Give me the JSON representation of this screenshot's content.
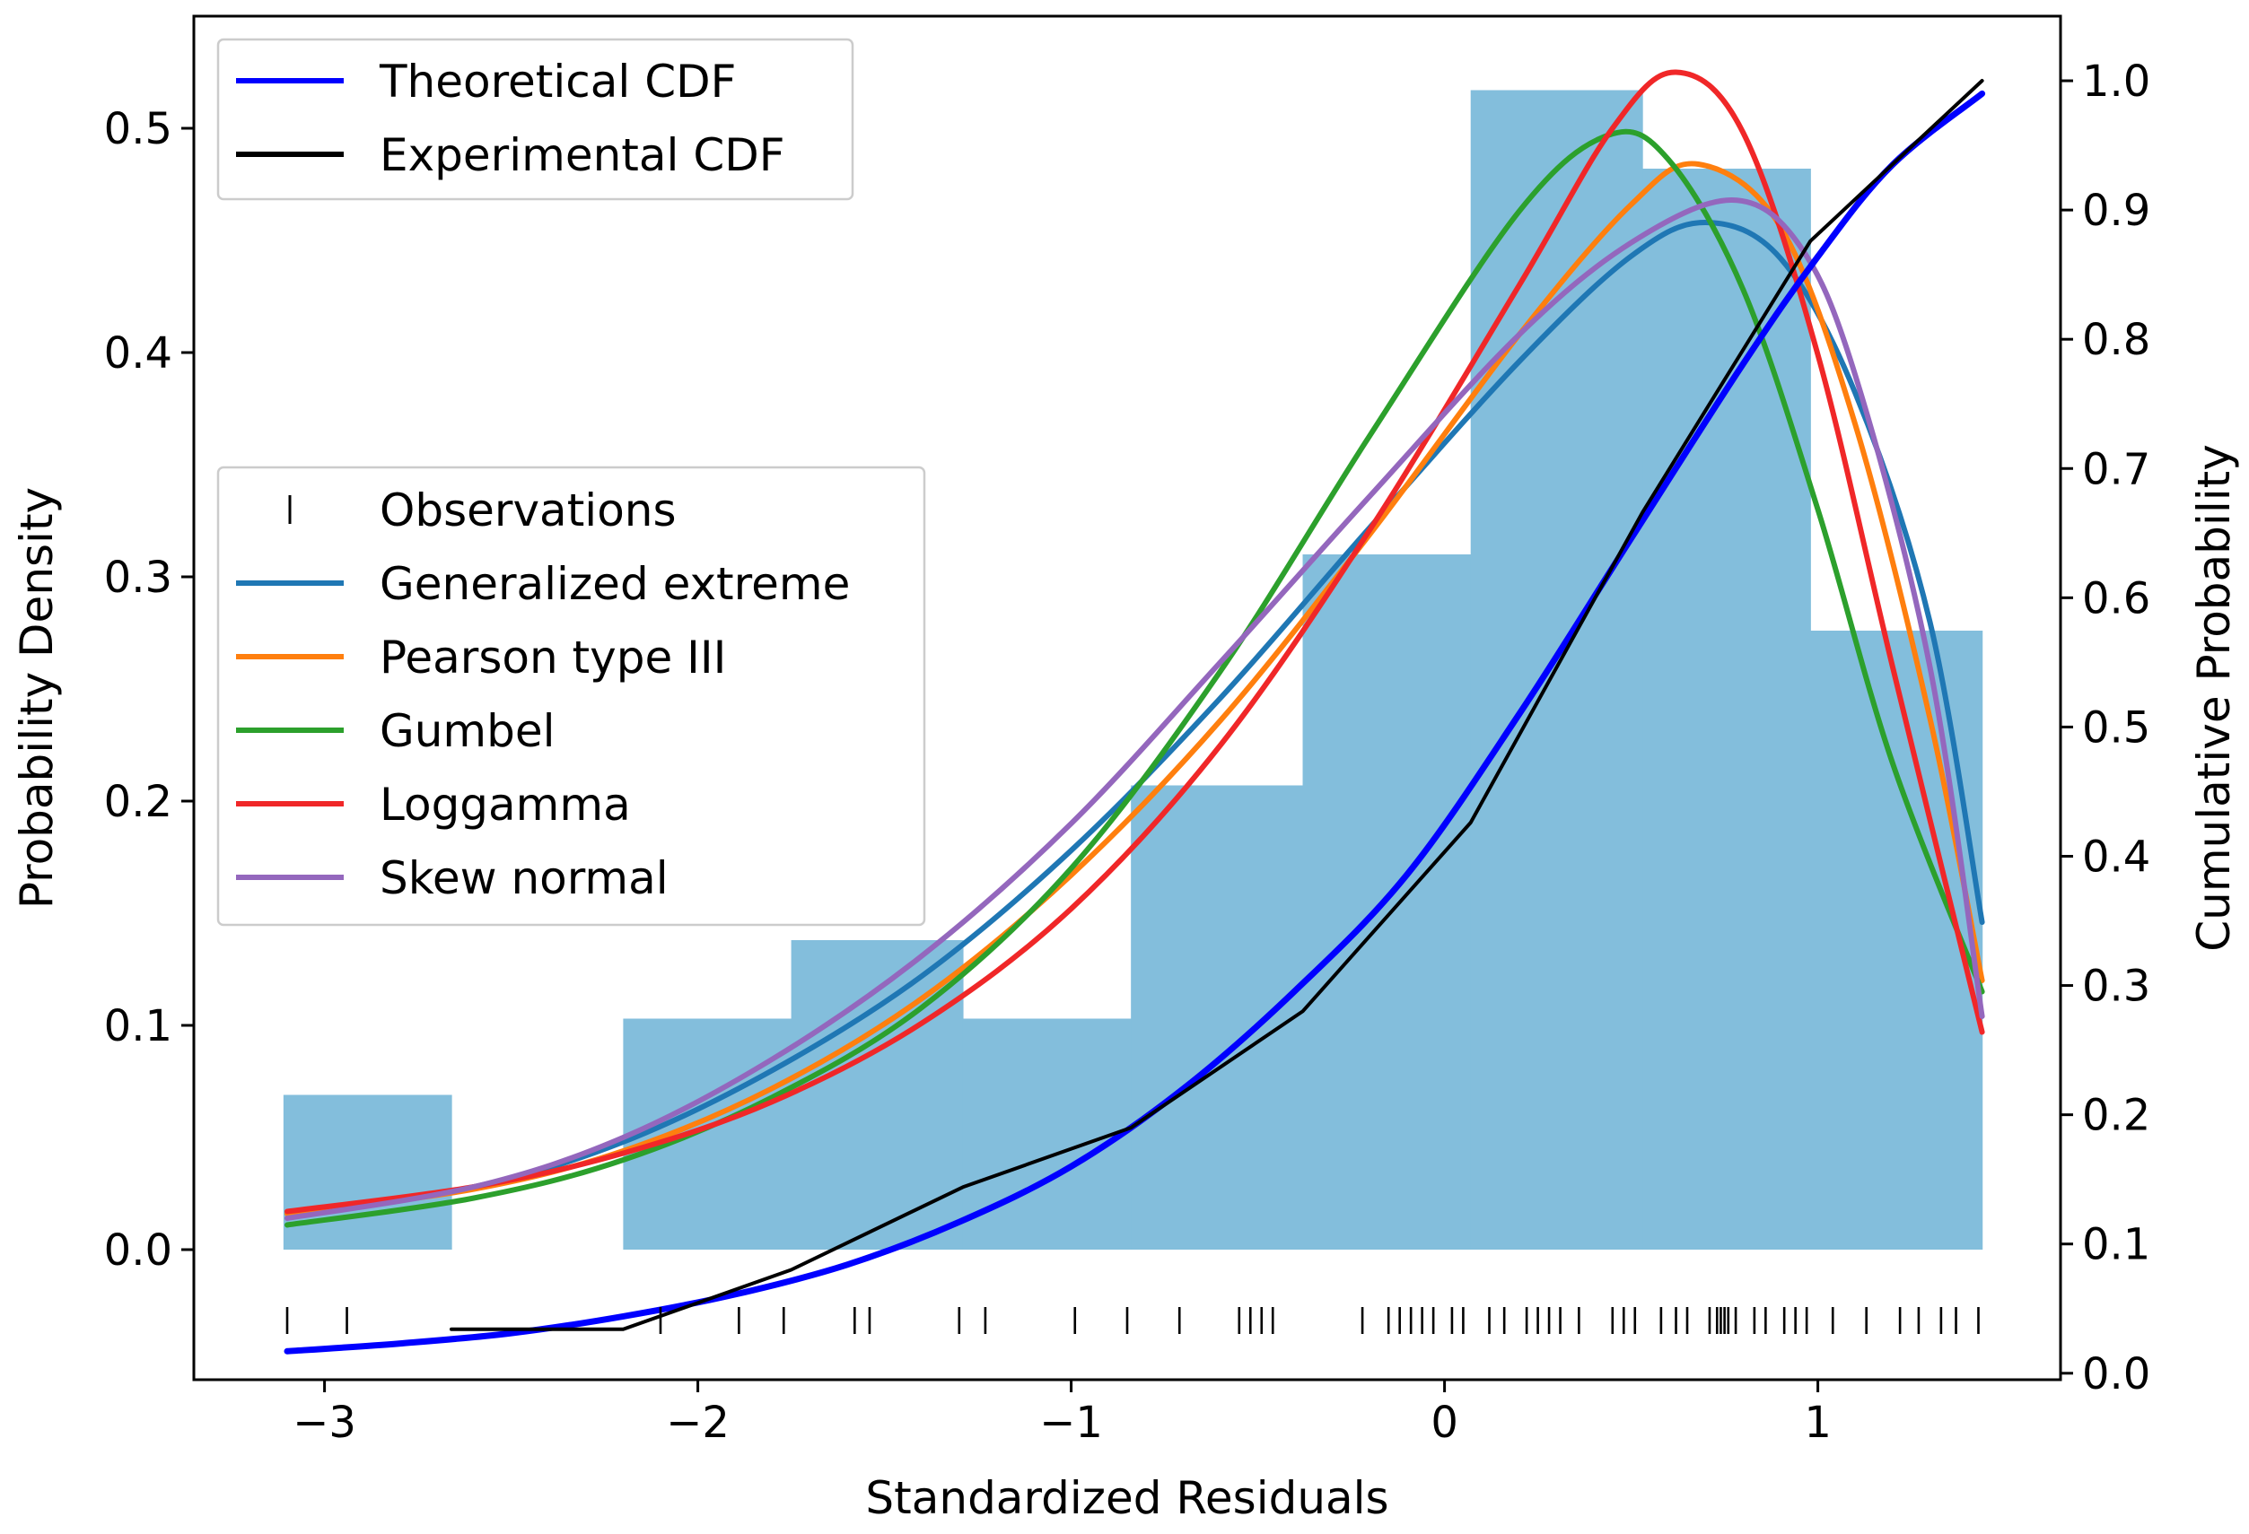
{
  "chart_data": {
    "type": "histogram+line",
    "xlabel": "Standardized Residuals",
    "ylabel_left": "Probability Density",
    "ylabel_right": "Cumulative Probability",
    "xlim": [
      -3.35,
      1.65
    ],
    "ylim_left": [
      -0.058,
      0.55
    ],
    "ylim_right": [
      -0.005,
      1.05
    ],
    "x_ticks": [
      -3,
      -2,
      -1,
      0,
      1
    ],
    "x_tick_labels": [
      "−3",
      "−2",
      "−1",
      "0",
      "1"
    ],
    "y_left_ticks": [
      0.0,
      0.1,
      0.2,
      0.3,
      0.4,
      0.5
    ],
    "y_left_tick_labels": [
      "0.0",
      "0.1",
      "0.2",
      "0.3",
      "0.4",
      "0.5"
    ],
    "y_right_ticks": [
      0.0,
      0.1,
      0.2,
      0.3,
      0.4,
      0.5,
      0.6,
      0.7,
      0.8,
      0.9,
      1.0
    ],
    "y_right_tick_labels": [
      "0.0",
      "0.1",
      "0.2",
      "0.3",
      "0.4",
      "0.5",
      "0.6",
      "0.7",
      "0.8",
      "0.9",
      "1.0"
    ],
    "histogram": {
      "color": "#83bedc",
      "bins": [
        {
          "x0": -3.11,
          "x1": -2.66,
          "density": 0.069
        },
        {
          "x0": -2.66,
          "x1": -2.2,
          "density": 0.0
        },
        {
          "x0": -2.2,
          "x1": -1.75,
          "density": 0.103
        },
        {
          "x0": -1.75,
          "x1": -1.29,
          "density": 0.138
        },
        {
          "x0": -1.29,
          "x1": -0.84,
          "density": 0.103
        },
        {
          "x0": -0.84,
          "x1": -0.38,
          "density": 0.207
        },
        {
          "x0": -0.38,
          "x1": 0.07,
          "density": 0.31
        },
        {
          "x0": 0.07,
          "x1": 0.53,
          "density": 0.517
        },
        {
          "x0": 0.53,
          "x1": 0.98,
          "density": 0.482
        },
        {
          "x0": 0.98,
          "x1": 1.44,
          "density": 0.276
        }
      ]
    },
    "pdf_series": [
      {
        "name": "Generalized extreme",
        "color": "#1f77b4",
        "x": [
          -3.1,
          -2.6,
          -2.2,
          -1.8,
          -1.4,
          -1.0,
          -0.6,
          -0.2,
          0.2,
          0.5,
          0.7,
          0.9,
          1.1,
          1.3,
          1.44
        ],
        "y": [
          0.016,
          0.028,
          0.048,
          0.08,
          0.122,
          0.178,
          0.246,
          0.322,
          0.396,
          0.443,
          0.458,
          0.442,
          0.382,
          0.28,
          0.146
        ]
      },
      {
        "name": "Pearson type III",
        "color": "#ff7f0e",
        "x": [
          -3.1,
          -2.6,
          -2.2,
          -1.8,
          -1.4,
          -1.0,
          -0.6,
          -0.2,
          0.2,
          0.5,
          0.68,
          0.9,
          1.1,
          1.3,
          1.44
        ],
        "y": [
          0.016,
          0.027,
          0.044,
          0.072,
          0.112,
          0.167,
          0.236,
          0.319,
          0.408,
          0.466,
          0.484,
          0.456,
          0.368,
          0.237,
          0.12
        ]
      },
      {
        "name": "Gumbel",
        "color": "#2ca02c",
        "x": [
          -3.1,
          -2.6,
          -2.2,
          -1.8,
          -1.4,
          -1.0,
          -0.6,
          -0.2,
          0.2,
          0.44,
          0.6,
          0.8,
          1.0,
          1.2,
          1.44
        ],
        "y": [
          0.011,
          0.023,
          0.04,
          0.068,
          0.108,
          0.17,
          0.258,
          0.363,
          0.463,
          0.497,
          0.486,
          0.428,
          0.33,
          0.217,
          0.115
        ]
      },
      {
        "name": "Loggamma",
        "color": "#f02728",
        "x": [
          -3.1,
          -2.6,
          -2.2,
          -1.8,
          -1.4,
          -1.0,
          -0.6,
          -0.2,
          0.2,
          0.45,
          0.62,
          0.8,
          1.0,
          1.2,
          1.44
        ],
        "y": [
          0.017,
          0.028,
          0.043,
          0.066,
          0.101,
          0.152,
          0.225,
          0.321,
          0.43,
          0.5,
          0.525,
          0.498,
          0.399,
          0.26,
          0.097
        ]
      },
      {
        "name": "Skew normal",
        "color": "#9467bd",
        "x": [
          -3.1,
          -2.6,
          -2.2,
          -1.8,
          -1.4,
          -1.0,
          -0.6,
          -0.2,
          0.2,
          0.5,
          0.77,
          0.95,
          1.1,
          1.3,
          1.44
        ],
        "y": [
          0.014,
          0.028,
          0.05,
          0.085,
          0.131,
          0.19,
          0.262,
          0.336,
          0.408,
          0.449,
          0.468,
          0.448,
          0.39,
          0.26,
          0.104
        ]
      }
    ],
    "cdf_series": [
      {
        "name": "Theoretical CDF",
        "color": "#0000ff",
        "axis": "right",
        "x": [
          -3.1,
          -2.8,
          -2.5,
          -2.2,
          -1.9,
          -1.6,
          -1.3,
          -1.0,
          -0.7,
          -0.4,
          -0.1,
          0.2,
          0.5,
          0.8,
          1.0,
          1.2,
          1.44
        ],
        "y": [
          0.017,
          0.023,
          0.031,
          0.044,
          0.061,
          0.084,
          0.117,
          0.16,
          0.22,
          0.296,
          0.386,
          0.51,
          0.646,
          0.781,
          0.864,
          0.935,
          0.99
        ]
      },
      {
        "name": "Experimental CDF",
        "color": "#000000",
        "axis": "right",
        "x": [
          -2.66,
          -2.2,
          -1.75,
          -1.29,
          -0.84,
          -0.38,
          0.07,
          0.53,
          0.98,
          1.44
        ],
        "y": [
          0.034,
          0.034,
          0.08,
          0.144,
          0.19,
          0.28,
          0.426,
          0.666,
          0.876,
          1.0
        ]
      }
    ],
    "observations": {
      "name": "Observations",
      "x": [
        -3.1,
        -2.94,
        -2.1,
        -1.89,
        -1.77,
        -1.58,
        -1.54,
        -1.3,
        -1.23,
        -0.99,
        -0.85,
        -0.71,
        -0.55,
        -0.52,
        -0.49,
        -0.46,
        -0.22,
        -0.15,
        -0.12,
        -0.09,
        -0.06,
        -0.03,
        0.02,
        0.05,
        0.12,
        0.16,
        0.22,
        0.25,
        0.28,
        0.31,
        0.36,
        0.45,
        0.48,
        0.51,
        0.58,
        0.62,
        0.65,
        0.71,
        0.73,
        0.74,
        0.75,
        0.76,
        0.78,
        0.83,
        0.86,
        0.91,
        0.94,
        0.97,
        1.04,
        1.13,
        1.22,
        1.27,
        1.33,
        1.37,
        1.43
      ]
    },
    "legend_upper": {
      "location": "upper-left",
      "entries": [
        "Theoretical CDF",
        "Experimental CDF"
      ]
    },
    "legend_middle": {
      "location": "center-left",
      "entries": [
        "Observations",
        "Generalized extreme",
        "Pearson type III",
        "Gumbel",
        "Loggamma",
        "Skew normal"
      ]
    }
  }
}
